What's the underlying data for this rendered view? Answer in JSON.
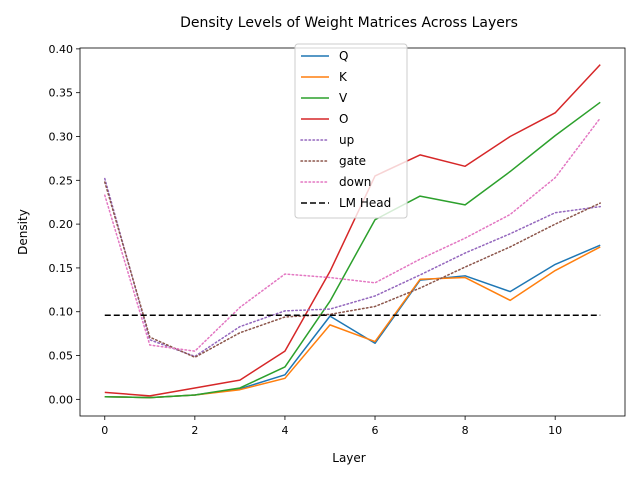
{
  "chart_data": {
    "type": "line",
    "title": "Density Levels of Weight Matrices Across Layers",
    "xlabel": "Layer",
    "ylabel": "Density",
    "x": [
      0,
      1,
      2,
      3,
      4,
      5,
      6,
      7,
      8,
      9,
      10,
      11
    ],
    "xlim": [
      -0.55,
      11.55
    ],
    "ylim": [
      -0.019,
      0.401
    ],
    "xticks": [
      0,
      2,
      4,
      6,
      8,
      10
    ],
    "xtick_labels": [
      "0",
      "2",
      "4",
      "6",
      "8",
      "10"
    ],
    "yticks": [
      0.0,
      0.05,
      0.1,
      0.15,
      0.2,
      0.25,
      0.3,
      0.35,
      0.4
    ],
    "ytick_labels": [
      "0.00",
      "0.05",
      "0.10",
      "0.15",
      "0.20",
      "0.25",
      "0.30",
      "0.35",
      "0.40"
    ],
    "grid": false,
    "legend_position": "top-center",
    "series": [
      {
        "name": "Q",
        "color": "#1f77b4",
        "style": "solid",
        "values": [
          0.003,
          0.002,
          0.005,
          0.012,
          0.028,
          0.095,
          0.064,
          0.136,
          0.141,
          0.123,
          0.154,
          0.176
        ]
      },
      {
        "name": "K",
        "color": "#ff7f0e",
        "style": "solid",
        "values": [
          0.003,
          0.002,
          0.005,
          0.011,
          0.024,
          0.085,
          0.066,
          0.137,
          0.139,
          0.113,
          0.147,
          0.174
        ]
      },
      {
        "name": "V",
        "color": "#2ca02c",
        "style": "solid",
        "values": [
          0.003,
          0.002,
          0.005,
          0.013,
          0.037,
          0.112,
          0.205,
          0.232,
          0.222,
          0.26,
          0.301,
          0.339
        ]
      },
      {
        "name": "O",
        "color": "#d62728",
        "style": "solid",
        "values": [
          0.008,
          0.004,
          0.013,
          0.022,
          0.055,
          0.146,
          0.255,
          0.279,
          0.266,
          0.3,
          0.327,
          0.382
        ]
      },
      {
        "name": "up",
        "color": "#9467bd",
        "style": "dotted",
        "values": [
          0.252,
          0.068,
          0.049,
          0.083,
          0.101,
          0.103,
          0.118,
          0.142,
          0.167,
          0.189,
          0.213,
          0.22
        ]
      },
      {
        "name": "gate",
        "color": "#8c564b",
        "style": "dotted",
        "values": [
          0.248,
          0.071,
          0.048,
          0.076,
          0.094,
          0.097,
          0.106,
          0.127,
          0.151,
          0.174,
          0.2,
          0.224
        ]
      },
      {
        "name": "down",
        "color": "#e377c2",
        "style": "dotted",
        "values": [
          0.233,
          0.062,
          0.055,
          0.105,
          0.143,
          0.139,
          0.133,
          0.16,
          0.184,
          0.211,
          0.253,
          0.321
        ]
      },
      {
        "name": "LM Head",
        "color": "#000000",
        "style": "dashed",
        "values": [
          0.096,
          0.096,
          0.096,
          0.096,
          0.096,
          0.096,
          0.096,
          0.096,
          0.096,
          0.096,
          0.096,
          0.096
        ]
      }
    ]
  }
}
